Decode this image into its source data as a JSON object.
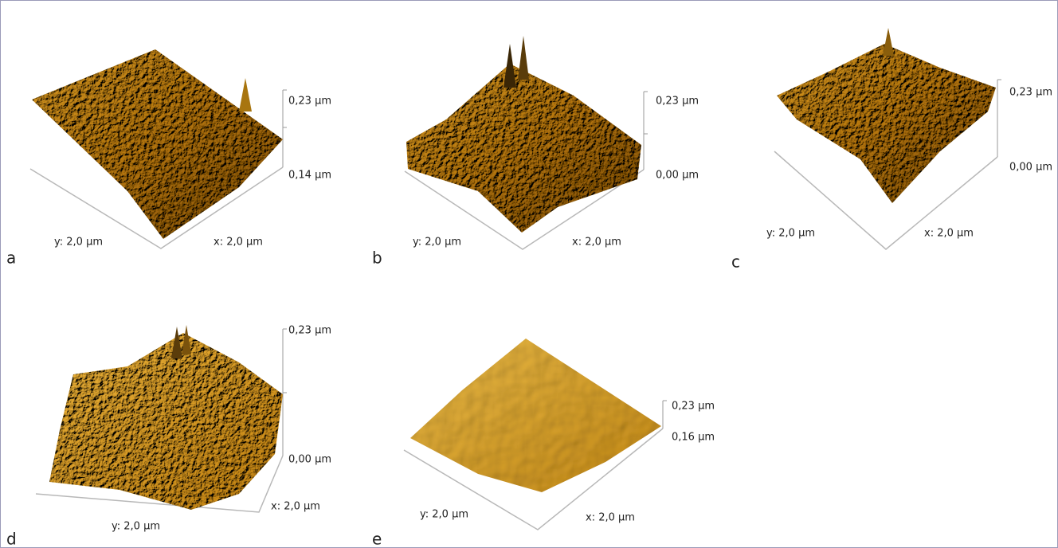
{
  "panels": [
    {
      "label": "a",
      "z_top": "0,23 µm",
      "z_bottom": "0,14 µm",
      "x_axis": "x: 2,0 µm",
      "y_axis": "y: 2,0 µm"
    },
    {
      "label": "b",
      "z_top": "0,23 µm",
      "z_bottom": "0,00 µm",
      "x_axis": "x: 2,0 µm",
      "y_axis": "y: 2,0 µm"
    },
    {
      "label": "c",
      "z_top": "0,23 µm",
      "z_bottom": "0,00 µm",
      "x_axis": "x: 2,0 µm",
      "y_axis": "y: 2,0 µm"
    },
    {
      "label": "d",
      "z_top": "0,23 µm",
      "z_bottom": "0,00 µm",
      "x_axis": "x: 2,0 µm",
      "y_axis": "y: 2,0 µm"
    },
    {
      "label": "e",
      "z_top": "0,23 µm",
      "z_bottom": "0,16 µm",
      "x_axis": "x: 2,0 µm",
      "y_axis": "y: 2,0 µm"
    }
  ]
}
